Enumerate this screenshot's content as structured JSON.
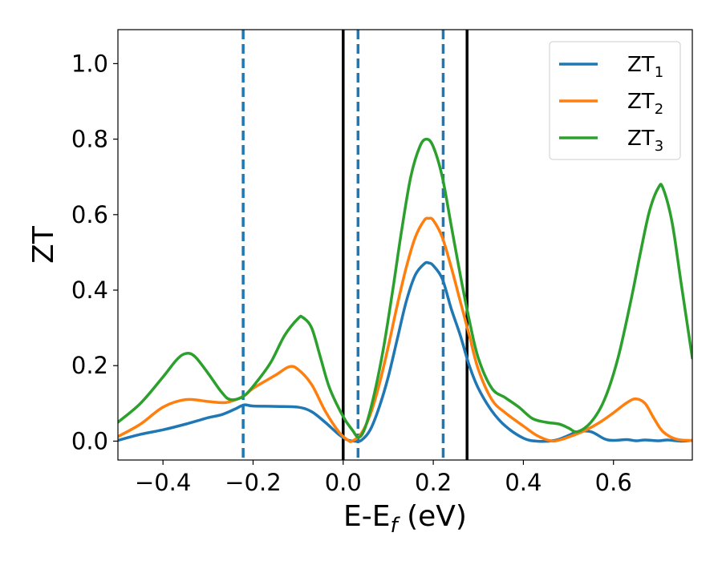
{
  "chart_data": {
    "type": "line",
    "xlabel": "E-E",
    "xlabel_sub": "f",
    "xlabel_unit": " (eV)",
    "ylabel": "ZT",
    "xlim": [
      -0.5,
      0.775
    ],
    "ylim": [
      -0.05,
      1.09
    ],
    "grid": false,
    "legend_position": "top-right",
    "xticks": [
      -0.4,
      -0.2,
      0.0,
      0.2,
      0.4,
      0.6
    ],
    "xtick_labels": [
      "−0.4",
      "−0.2",
      "0.0",
      "0.2",
      "0.4",
      "0.6"
    ],
    "yticks": [
      0.0,
      0.2,
      0.4,
      0.6,
      0.8,
      1.0
    ],
    "ytick_labels": [
      "0.0",
      "0.2",
      "0.4",
      "0.6",
      "0.8",
      "1.0"
    ],
    "vlines": [
      {
        "x": -0.222,
        "style": "dashed",
        "color": "#1f77b4"
      },
      {
        "x": 0.0,
        "style": "solid",
        "color": "#000000"
      },
      {
        "x": 0.033,
        "style": "dashed",
        "color": "#1f77b4"
      },
      {
        "x": 0.222,
        "style": "dashed",
        "color": "#1f77b4"
      },
      {
        "x": 0.275,
        "style": "solid",
        "color": "#000000"
      }
    ],
    "series": [
      {
        "name": "ZT",
        "sub": "1",
        "color": "#1f77b4",
        "points": [
          [
            -0.5,
            0.002
          ],
          [
            -0.45,
            0.018
          ],
          [
            -0.4,
            0.03
          ],
          [
            -0.35,
            0.045
          ],
          [
            -0.3,
            0.062
          ],
          [
            -0.27,
            0.07
          ],
          [
            -0.24,
            0.085
          ],
          [
            -0.22,
            0.096
          ],
          [
            -0.2,
            0.093
          ],
          [
            -0.15,
            0.092
          ],
          [
            -0.1,
            0.09
          ],
          [
            -0.07,
            0.078
          ],
          [
            -0.04,
            0.05
          ],
          [
            -0.01,
            0.018
          ],
          [
            0.01,
            0.003
          ],
          [
            0.025,
            0.0
          ],
          [
            0.04,
            0.002
          ],
          [
            0.06,
            0.03
          ],
          [
            0.08,
            0.09
          ],
          [
            0.1,
            0.17
          ],
          [
            0.12,
            0.27
          ],
          [
            0.14,
            0.37
          ],
          [
            0.16,
            0.44
          ],
          [
            0.18,
            0.47
          ],
          [
            0.19,
            0.472
          ],
          [
            0.2,
            0.465
          ],
          [
            0.22,
            0.43
          ],
          [
            0.24,
            0.35
          ],
          [
            0.26,
            0.28
          ],
          [
            0.28,
            0.2
          ],
          [
            0.3,
            0.14
          ],
          [
            0.33,
            0.08
          ],
          [
            0.36,
            0.04
          ],
          [
            0.4,
            0.008
          ],
          [
            0.43,
            0.0
          ],
          [
            0.47,
            0.002
          ],
          [
            0.5,
            0.015
          ],
          [
            0.52,
            0.025
          ],
          [
            0.55,
            0.025
          ],
          [
            0.58,
            0.006
          ],
          [
            0.6,
            0.002
          ],
          [
            0.63,
            0.004
          ],
          [
            0.65,
            0.001
          ],
          [
            0.67,
            0.003
          ],
          [
            0.7,
            0.001
          ],
          [
            0.72,
            0.003
          ],
          [
            0.75,
            0.0
          ],
          [
            0.775,
            0.002
          ]
        ]
      },
      {
        "name": "ZT",
        "sub": "2",
        "color": "#ff7f0e",
        "points": [
          [
            -0.5,
            0.012
          ],
          [
            -0.45,
            0.045
          ],
          [
            -0.4,
            0.09
          ],
          [
            -0.35,
            0.11
          ],
          [
            -0.3,
            0.105
          ],
          [
            -0.27,
            0.102
          ],
          [
            -0.25,
            0.105
          ],
          [
            -0.22,
            0.12
          ],
          [
            -0.2,
            0.14
          ],
          [
            -0.15,
            0.175
          ],
          [
            -0.12,
            0.197
          ],
          [
            -0.1,
            0.19
          ],
          [
            -0.07,
            0.15
          ],
          [
            -0.04,
            0.08
          ],
          [
            -0.01,
            0.025
          ],
          [
            0.01,
            0.003
          ],
          [
            0.02,
            0.0
          ],
          [
            0.04,
            0.02
          ],
          [
            0.06,
            0.07
          ],
          [
            0.08,
            0.15
          ],
          [
            0.1,
            0.25
          ],
          [
            0.12,
            0.36
          ],
          [
            0.14,
            0.46
          ],
          [
            0.16,
            0.54
          ],
          [
            0.18,
            0.585
          ],
          [
            0.19,
            0.59
          ],
          [
            0.2,
            0.585
          ],
          [
            0.22,
            0.54
          ],
          [
            0.24,
            0.46
          ],
          [
            0.26,
            0.37
          ],
          [
            0.28,
            0.28
          ],
          [
            0.3,
            0.19
          ],
          [
            0.33,
            0.11
          ],
          [
            0.36,
            0.075
          ],
          [
            0.4,
            0.04
          ],
          [
            0.43,
            0.015
          ],
          [
            0.46,
            0.001
          ],
          [
            0.48,
            0.003
          ],
          [
            0.51,
            0.015
          ],
          [
            0.54,
            0.03
          ],
          [
            0.57,
            0.05
          ],
          [
            0.6,
            0.075
          ],
          [
            0.63,
            0.102
          ],
          [
            0.65,
            0.112
          ],
          [
            0.67,
            0.1
          ],
          [
            0.69,
            0.06
          ],
          [
            0.71,
            0.025
          ],
          [
            0.74,
            0.005
          ],
          [
            0.775,
            0.002
          ]
        ]
      },
      {
        "name": "ZT",
        "sub": "3",
        "color": "#2ca02c",
        "points": [
          [
            -0.5,
            0.05
          ],
          [
            -0.45,
            0.1
          ],
          [
            -0.4,
            0.17
          ],
          [
            -0.37,
            0.215
          ],
          [
            -0.35,
            0.232
          ],
          [
            -0.33,
            0.225
          ],
          [
            -0.3,
            0.18
          ],
          [
            -0.27,
            0.13
          ],
          [
            -0.25,
            0.11
          ],
          [
            -0.22,
            0.12
          ],
          [
            -0.19,
            0.16
          ],
          [
            -0.16,
            0.21
          ],
          [
            -0.13,
            0.28
          ],
          [
            -0.1,
            0.325
          ],
          [
            -0.09,
            0.328
          ],
          [
            -0.07,
            0.3
          ],
          [
            -0.05,
            0.22
          ],
          [
            -0.03,
            0.14
          ],
          [
            0.0,
            0.065
          ],
          [
            0.02,
            0.03
          ],
          [
            0.035,
            0.01
          ],
          [
            0.05,
            0.04
          ],
          [
            0.07,
            0.13
          ],
          [
            0.09,
            0.25
          ],
          [
            0.11,
            0.4
          ],
          [
            0.13,
            0.56
          ],
          [
            0.15,
            0.7
          ],
          [
            0.17,
            0.78
          ],
          [
            0.185,
            0.8
          ],
          [
            0.2,
            0.78
          ],
          [
            0.22,
            0.7
          ],
          [
            0.24,
            0.57
          ],
          [
            0.26,
            0.44
          ],
          [
            0.28,
            0.32
          ],
          [
            0.3,
            0.22
          ],
          [
            0.33,
            0.14
          ],
          [
            0.36,
            0.115
          ],
          [
            0.39,
            0.09
          ],
          [
            0.42,
            0.06
          ],
          [
            0.45,
            0.05
          ],
          [
            0.48,
            0.045
          ],
          [
            0.5,
            0.035
          ],
          [
            0.52,
            0.025
          ],
          [
            0.55,
            0.05
          ],
          [
            0.58,
            0.11
          ],
          [
            0.61,
            0.22
          ],
          [
            0.64,
            0.38
          ],
          [
            0.66,
            0.5
          ],
          [
            0.68,
            0.61
          ],
          [
            0.7,
            0.672
          ],
          [
            0.71,
            0.67
          ],
          [
            0.73,
            0.58
          ],
          [
            0.75,
            0.42
          ],
          [
            0.775,
            0.22
          ]
        ]
      }
    ]
  }
}
